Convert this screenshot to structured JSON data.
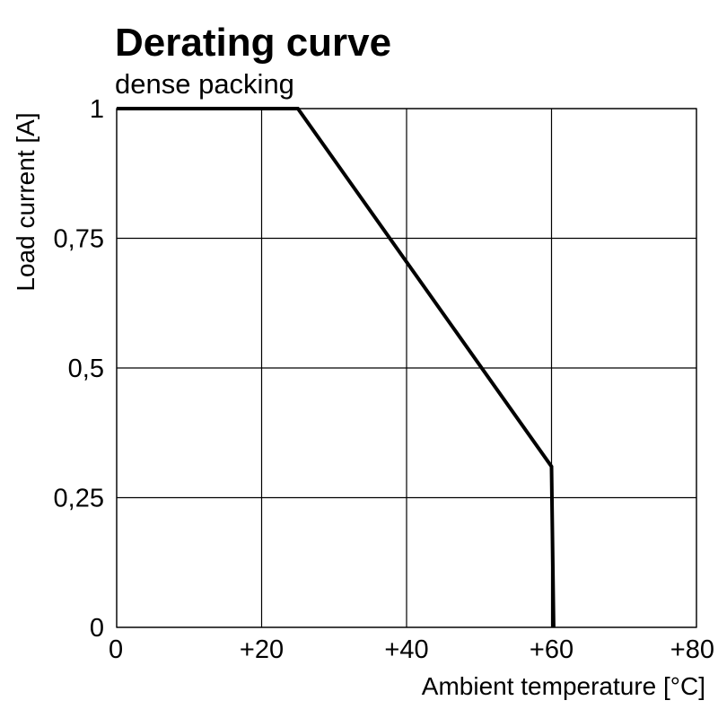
{
  "chart_data": {
    "type": "line",
    "title": "Derating curve",
    "subtitle": "dense packing",
    "xlabel": "Ambient temperature [°C]",
    "ylabel": "Load current [A]",
    "xlim": [
      0,
      80
    ],
    "ylim": [
      0,
      1
    ],
    "x_ticks": [
      0,
      20,
      40,
      60,
      80
    ],
    "x_tick_labels": [
      "0",
      "+20",
      "+40",
      "+60",
      "+80"
    ],
    "y_ticks": [
      0,
      0.25,
      0.5,
      0.75,
      1
    ],
    "y_tick_labels": [
      "0",
      "0,25",
      "0,5",
      "0,75",
      "1"
    ],
    "grid": true,
    "series": [
      {
        "x": [
          0,
          25,
          60,
          60.3
        ],
        "y": [
          1,
          1,
          0.31,
          0
        ],
        "color": "#000000"
      }
    ]
  }
}
